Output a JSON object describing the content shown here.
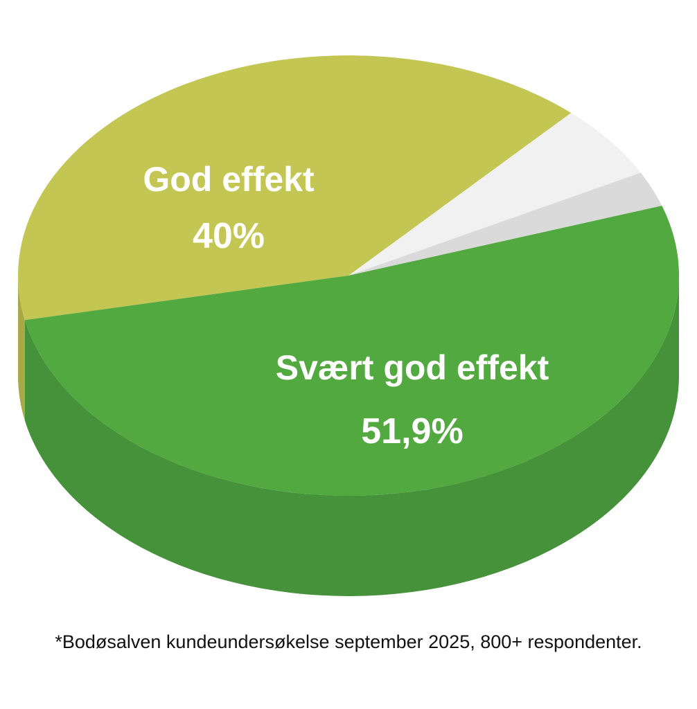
{
  "chart_data": {
    "type": "pie",
    "style": "3d",
    "slices": [
      {
        "name": "Svært god effekt",
        "value_label": "51,9%",
        "value": 51.9,
        "color": "#52a940",
        "side_color": "#45923a"
      },
      {
        "name": "God effekt",
        "value_label": "40%",
        "value": 40,
        "color": "#c4c654",
        "side_color": "#a7a947"
      },
      {
        "name": "",
        "value_label": "",
        "value": 5.5,
        "color": "#f1f1f1",
        "side_color": "#dcdcdc"
      },
      {
        "name": "",
        "value_label": "",
        "value": 2.6,
        "color": "#dadada",
        "side_color": "#c4c4c4"
      }
    ]
  },
  "footnote": "*Bodøsalven kundeundersøkelse september 2025, 800+ respondenter."
}
